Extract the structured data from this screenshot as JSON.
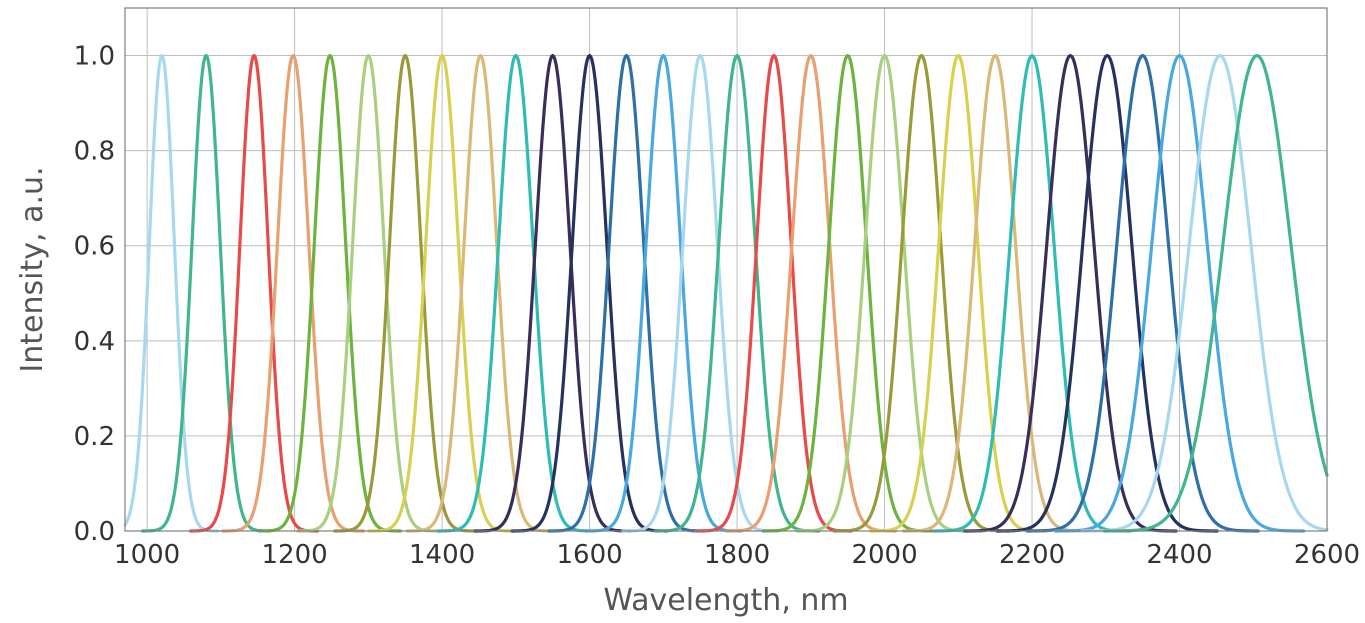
{
  "chart_data": {
    "type": "line",
    "title": "",
    "xlabel": "Wavelength, nm",
    "ylabel": "Intensity, a.u.",
    "xlim": [
      970,
      2600
    ],
    "ylim": [
      0,
      1.1
    ],
    "xticks": [
      1000,
      1200,
      1400,
      1600,
      1800,
      2000,
      2200,
      2400,
      2600
    ],
    "yticks": [
      0.0,
      0.2,
      0.4,
      0.6,
      0.8,
      1.0
    ],
    "xtick_labels": [
      "1000",
      "1200",
      "1400",
      "1600",
      "1800",
      "2000",
      "2200",
      "2400",
      "2600"
    ],
    "ytick_labels": [
      "0.0",
      "0.2",
      "0.4",
      "0.6",
      "0.8",
      "1.0"
    ],
    "grid": true,
    "legend": "none",
    "curve_shape": "gaussian",
    "series": [
      {
        "peak": 1020,
        "fwhm": 40,
        "amplitude": 1.0,
        "color": "#a8d8f0"
      },
      {
        "peak": 1080,
        "fwhm": 45,
        "amplitude": 1.0,
        "color": "#3fb68b"
      },
      {
        "peak": 1145,
        "fwhm": 45,
        "amplitude": 1.0,
        "color": "#e84a4a"
      },
      {
        "peak": 1198,
        "fwhm": 50,
        "amplitude": 1.0,
        "color": "#e8a070"
      },
      {
        "peak": 1248,
        "fwhm": 50,
        "amplitude": 1.0,
        "color": "#6db33f"
      },
      {
        "peak": 1300,
        "fwhm": 50,
        "amplitude": 1.0,
        "color": "#a8d080"
      },
      {
        "peak": 1350,
        "fwhm": 50,
        "amplitude": 1.0,
        "color": "#9a9a3a"
      },
      {
        "peak": 1400,
        "fwhm": 52,
        "amplitude": 1.0,
        "color": "#d8d050"
      },
      {
        "peak": 1452,
        "fwhm": 52,
        "amplitude": 1.0,
        "color": "#dbb878"
      },
      {
        "peak": 1500,
        "fwhm": 55,
        "amplitude": 1.0,
        "color": "#2fbcb5"
      },
      {
        "peak": 1550,
        "fwhm": 55,
        "amplitude": 1.0,
        "color": "#3a2d5a"
      },
      {
        "peak": 1600,
        "fwhm": 55,
        "amplitude": 1.0,
        "color": "#23335e"
      },
      {
        "peak": 1650,
        "fwhm": 55,
        "amplitude": 1.0,
        "color": "#2e6fa8"
      },
      {
        "peak": 1700,
        "fwhm": 55,
        "amplitude": 1.0,
        "color": "#4aa8e0"
      },
      {
        "peak": 1750,
        "fwhm": 55,
        "amplitude": 1.0,
        "color": "#a8d8f0"
      },
      {
        "peak": 1800,
        "fwhm": 58,
        "amplitude": 1.0,
        "color": "#3fb68b"
      },
      {
        "peak": 1850,
        "fwhm": 55,
        "amplitude": 1.0,
        "color": "#e84a4a"
      },
      {
        "peak": 1900,
        "fwhm": 60,
        "amplitude": 1.0,
        "color": "#e8a070"
      },
      {
        "peak": 1950,
        "fwhm": 60,
        "amplitude": 1.0,
        "color": "#6db33f"
      },
      {
        "peak": 2000,
        "fwhm": 62,
        "amplitude": 1.0,
        "color": "#a8d080"
      },
      {
        "peak": 2050,
        "fwhm": 62,
        "amplitude": 1.0,
        "color": "#9a9a3a"
      },
      {
        "peak": 2100,
        "fwhm": 62,
        "amplitude": 1.0,
        "color": "#d8d050"
      },
      {
        "peak": 2150,
        "fwhm": 65,
        "amplitude": 1.0,
        "color": "#dbb878"
      },
      {
        "peak": 2200,
        "fwhm": 70,
        "amplitude": 1.0,
        "color": "#2fbcb5"
      },
      {
        "peak": 2252,
        "fwhm": 75,
        "amplitude": 1.0,
        "color": "#3a2d5a"
      },
      {
        "peak": 2302,
        "fwhm": 78,
        "amplitude": 1.0,
        "color": "#23335e"
      },
      {
        "peak": 2350,
        "fwhm": 82,
        "amplitude": 1.0,
        "color": "#2e6fa8"
      },
      {
        "peak": 2400,
        "fwhm": 88,
        "amplitude": 1.0,
        "color": "#4aa8e0"
      },
      {
        "peak": 2455,
        "fwhm": 98,
        "amplitude": 1.0,
        "color": "#a8d8f0"
      },
      {
        "peak": 2505,
        "fwhm": 108,
        "amplitude": 1.0,
        "color": "#3fb68b"
      }
    ]
  }
}
